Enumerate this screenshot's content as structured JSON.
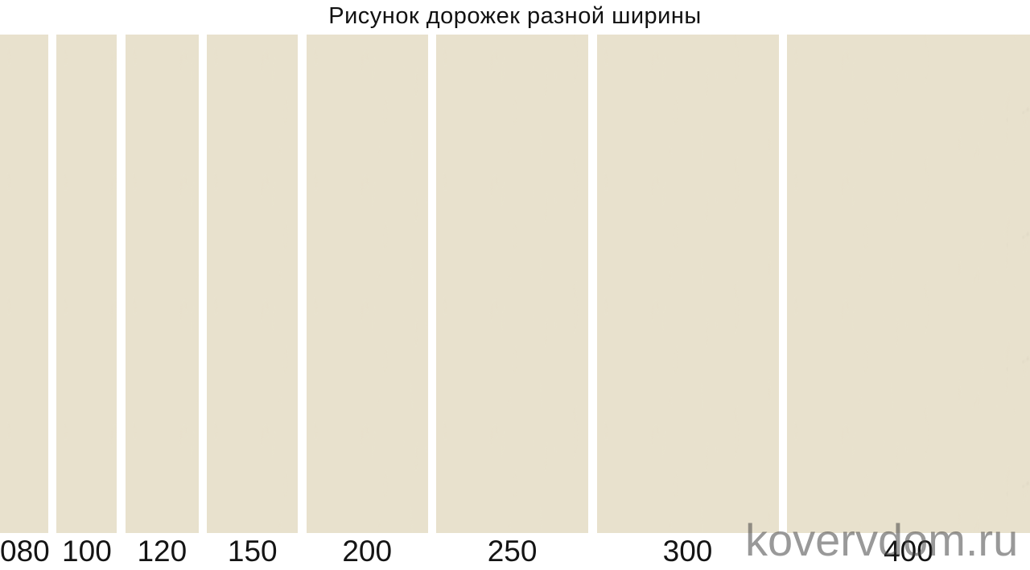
{
  "title": "Рисунок дорожек разной ширины",
  "watermark": "kovervdom.ru",
  "runners": [
    {
      "label": "080",
      "width_cm": 80
    },
    {
      "label": "100",
      "width_cm": 100
    },
    {
      "label": "120",
      "width_cm": 120
    },
    {
      "label": "150",
      "width_cm": 150
    },
    {
      "label": "200",
      "width_cm": 200
    },
    {
      "label": "250",
      "width_cm": 250
    },
    {
      "label": "300",
      "width_cm": 300
    },
    {
      "label": "400",
      "width_cm": 400
    }
  ],
  "colors": {
    "texture_base": "#a6a095",
    "texture_light": "#e8e1cd",
    "texture_dark": "#847e73",
    "texture_fleck": "#d6d0be",
    "label_text": "#141414",
    "title_text": "#111111",
    "watermark_text": "rgba(70,70,70,0.55)",
    "background": "#ffffff"
  }
}
